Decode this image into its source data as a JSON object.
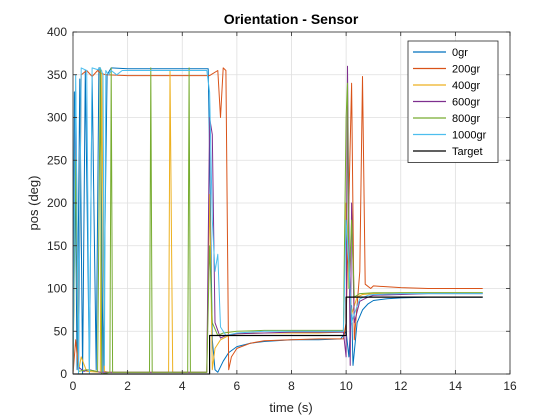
{
  "chart_data": {
    "type": "line",
    "title": "Orientation - Sensor",
    "xlabel": "time (s)",
    "ylabel": "pos (deg)",
    "xlim": [
      0,
      16
    ],
    "ylim": [
      0,
      400
    ],
    "xticks": [
      0,
      2,
      4,
      6,
      8,
      10,
      12,
      14,
      16
    ],
    "yticks": [
      0,
      50,
      100,
      150,
      200,
      250,
      300,
      350,
      400
    ],
    "grid": true,
    "legend_position": "top-right",
    "series": [
      {
        "name": "0gr",
        "color": "#0072BD",
        "points": [
          [
            0,
            0
          ],
          [
            0.05,
            330
          ],
          [
            0.15,
            5
          ],
          [
            0.25,
            345
          ],
          [
            0.35,
            0
          ],
          [
            0.45,
            355
          ],
          [
            0.6,
            2
          ],
          [
            0.7,
            350
          ],
          [
            0.85,
            5
          ],
          [
            0.95,
            358
          ],
          [
            1.0,
            358
          ],
          [
            1.1,
            2
          ],
          [
            1.25,
            350
          ],
          [
            1.4,
            358
          ],
          [
            2.0,
            357
          ],
          [
            3.0,
            357
          ],
          [
            4.0,
            357
          ],
          [
            4.95,
            357
          ],
          [
            5.0,
            260
          ],
          [
            5.1,
            40
          ],
          [
            5.2,
            5
          ],
          [
            5.3,
            2
          ],
          [
            5.5,
            15
          ],
          [
            5.7,
            25
          ],
          [
            6.0,
            32
          ],
          [
            6.5,
            36
          ],
          [
            7.0,
            38
          ],
          [
            8.0,
            40
          ],
          [
            9.0,
            40
          ],
          [
            9.8,
            41
          ],
          [
            10.0,
            50
          ],
          [
            10.1,
            20
          ],
          [
            10.2,
            80
          ],
          [
            10.25,
            10
          ],
          [
            10.4,
            60
          ],
          [
            10.6,
            75
          ],
          [
            10.8,
            82
          ],
          [
            11.0,
            86
          ],
          [
            11.5,
            88
          ],
          [
            12.0,
            89
          ],
          [
            13.0,
            90
          ],
          [
            14.0,
            90
          ],
          [
            15.0,
            90
          ]
        ]
      },
      {
        "name": "200gr",
        "color": "#D95319",
        "points": [
          [
            0,
            0
          ],
          [
            0.1,
            40
          ],
          [
            0.2,
            5
          ],
          [
            0.3,
            350
          ],
          [
            0.5,
            355
          ],
          [
            0.7,
            348
          ],
          [
            0.9,
            355
          ],
          [
            1.0,
            352
          ],
          [
            1.2,
            350
          ],
          [
            2.0,
            349
          ],
          [
            3.0,
            349
          ],
          [
            4.0,
            349
          ],
          [
            4.9,
            349
          ],
          [
            5.0,
            349
          ],
          [
            5.3,
            355
          ],
          [
            5.4,
            300
          ],
          [
            5.5,
            358
          ],
          [
            5.6,
            355
          ],
          [
            5.7,
            5
          ],
          [
            5.8,
            20
          ],
          [
            6.0,
            30
          ],
          [
            6.5,
            36
          ],
          [
            7.0,
            39
          ],
          [
            8.0,
            40
          ],
          [
            9.0,
            41
          ],
          [
            9.9,
            41
          ],
          [
            10.0,
            60
          ],
          [
            10.2,
            340
          ],
          [
            10.3,
            40
          ],
          [
            10.5,
            120
          ],
          [
            10.6,
            348
          ],
          [
            10.7,
            105
          ],
          [
            10.9,
            100
          ],
          [
            11.0,
            103
          ],
          [
            11.5,
            102
          ],
          [
            12.0,
            101
          ],
          [
            13.0,
            100
          ],
          [
            14.0,
            100
          ],
          [
            15.0,
            100
          ]
        ]
      },
      {
        "name": "400gr",
        "color": "#EDB120",
        "points": [
          [
            0,
            0
          ],
          [
            0.1,
            300
          ],
          [
            0.2,
            3
          ],
          [
            0.3,
            20
          ],
          [
            0.5,
            3
          ],
          [
            1.0,
            2
          ],
          [
            1.05,
            355
          ],
          [
            1.15,
            3
          ],
          [
            1.3,
            2
          ],
          [
            2.0,
            2
          ],
          [
            3.0,
            2
          ],
          [
            3.5,
            2
          ],
          [
            3.55,
            355
          ],
          [
            3.65,
            2
          ],
          [
            4.0,
            2
          ],
          [
            4.9,
            2
          ],
          [
            5.0,
            210
          ],
          [
            5.1,
            5
          ],
          [
            5.2,
            30
          ],
          [
            5.4,
            40
          ],
          [
            5.7,
            45
          ],
          [
            6.0,
            47
          ],
          [
            7.0,
            48
          ],
          [
            8.0,
            48
          ],
          [
            9.0,
            48
          ],
          [
            9.9,
            49
          ],
          [
            10.0,
            200
          ],
          [
            10.1,
            120
          ],
          [
            10.2,
            70
          ],
          [
            10.4,
            90
          ],
          [
            10.6,
            93
          ],
          [
            11.0,
            94
          ],
          [
            12.0,
            95
          ],
          [
            13.0,
            95
          ],
          [
            14.0,
            95
          ],
          [
            15.0,
            95
          ]
        ]
      },
      {
        "name": "600gr",
        "color": "#7E2F8E",
        "points": [
          [
            0,
            0
          ],
          [
            0.1,
            330
          ],
          [
            0.2,
            8
          ],
          [
            0.4,
            3
          ],
          [
            0.6,
            5
          ],
          [
            1.0,
            2
          ],
          [
            2.0,
            2
          ],
          [
            3.0,
            2
          ],
          [
            4.0,
            2
          ],
          [
            4.9,
            2
          ],
          [
            5.0,
            300
          ],
          [
            5.1,
            280
          ],
          [
            5.2,
            60
          ],
          [
            5.4,
            42
          ],
          [
            5.6,
            45
          ],
          [
            6.0,
            47
          ],
          [
            7.0,
            48
          ],
          [
            8.0,
            49
          ],
          [
            9.0,
            49
          ],
          [
            9.9,
            49
          ],
          [
            10.0,
            20
          ],
          [
            10.05,
            360
          ],
          [
            10.15,
            10
          ],
          [
            10.2,
            200
          ],
          [
            10.3,
            60
          ],
          [
            10.5,
            85
          ],
          [
            10.8,
            90
          ],
          [
            11.0,
            92
          ],
          [
            12.0,
            93
          ],
          [
            13.0,
            94
          ],
          [
            14.0,
            94
          ],
          [
            15.0,
            94
          ]
        ]
      },
      {
        "name": "800gr",
        "color": "#77AC30",
        "points": [
          [
            0,
            0
          ],
          [
            0.1,
            250
          ],
          [
            0.2,
            3
          ],
          [
            0.5,
            5
          ],
          [
            0.9,
            3
          ],
          [
            1.0,
            358
          ],
          [
            1.05,
            0
          ],
          [
            1.35,
            2
          ],
          [
            1.4,
            358
          ],
          [
            1.45,
            2
          ],
          [
            2.8,
            2
          ],
          [
            2.85,
            358
          ],
          [
            2.9,
            2
          ],
          [
            4.2,
            2
          ],
          [
            4.25,
            358
          ],
          [
            4.3,
            2
          ],
          [
            4.9,
            2
          ],
          [
            5.0,
            150
          ],
          [
            5.1,
            60
          ],
          [
            5.3,
            45
          ],
          [
            5.5,
            48
          ],
          [
            6.0,
            50
          ],
          [
            7.0,
            51
          ],
          [
            8.0,
            51
          ],
          [
            9.0,
            51
          ],
          [
            9.9,
            51
          ],
          [
            10.0,
            300
          ],
          [
            10.05,
            340
          ],
          [
            10.1,
            100
          ],
          [
            10.2,
            180
          ],
          [
            10.3,
            90
          ],
          [
            10.5,
            94
          ],
          [
            11.0,
            95
          ],
          [
            12.0,
            95
          ],
          [
            13.0,
            95
          ],
          [
            14.0,
            95
          ],
          [
            15.0,
            95
          ]
        ]
      },
      {
        "name": "1000gr",
        "color": "#4DBEEE",
        "points": [
          [
            0,
            0
          ],
          [
            0.1,
            350
          ],
          [
            0.2,
            0
          ],
          [
            0.3,
            358
          ],
          [
            0.5,
            355
          ],
          [
            0.6,
            0
          ],
          [
            0.7,
            358
          ],
          [
            0.9,
            356
          ],
          [
            1.0,
            358
          ],
          [
            1.1,
            350
          ],
          [
            1.15,
            10
          ],
          [
            1.2,
            355
          ],
          [
            1.3,
            350
          ],
          [
            1.4,
            355
          ],
          [
            1.6,
            350
          ],
          [
            1.8,
            355
          ],
          [
            2.0,
            355
          ],
          [
            4.9,
            355
          ],
          [
            5.0,
            330
          ],
          [
            5.1,
            180
          ],
          [
            5.2,
            120
          ],
          [
            5.3,
            140
          ],
          [
            5.4,
            55
          ],
          [
            5.6,
            45
          ],
          [
            6.0,
            48
          ],
          [
            7.0,
            50
          ],
          [
            8.0,
            50
          ],
          [
            9.0,
            50
          ],
          [
            9.9,
            50
          ],
          [
            10.0,
            180
          ],
          [
            10.1,
            130
          ],
          [
            10.2,
            60
          ],
          [
            10.3,
            70
          ],
          [
            10.5,
            88
          ],
          [
            10.8,
            92
          ],
          [
            11.0,
            93
          ],
          [
            12.0,
            94
          ],
          [
            13.0,
            94
          ],
          [
            14.0,
            94
          ],
          [
            15.0,
            94
          ]
        ]
      },
      {
        "name": "Target",
        "color": "#000000",
        "points": [
          [
            0,
            0
          ],
          [
            5,
            0
          ],
          [
            5,
            45
          ],
          [
            10,
            45
          ],
          [
            10,
            90
          ],
          [
            15,
            90
          ]
        ]
      }
    ]
  }
}
